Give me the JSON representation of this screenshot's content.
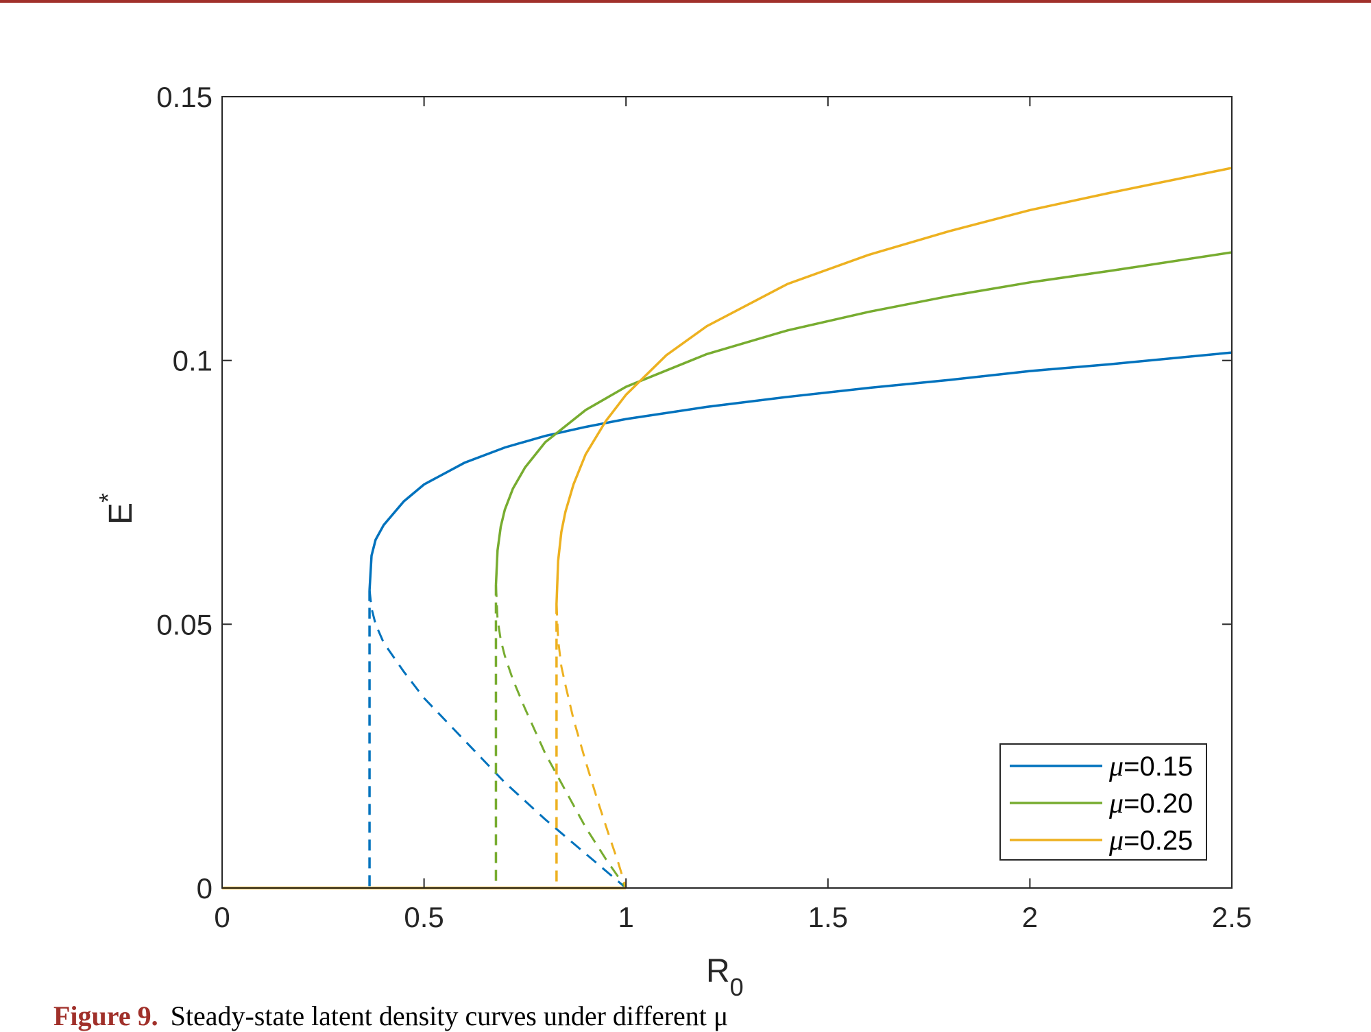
{
  "caption": {
    "label": "Figure 9.",
    "text": "Steady-state latent density curves under different μ"
  },
  "chart_data": {
    "type": "line",
    "xlabel": "R",
    "xlabel_sub": "0",
    "ylabel": "E",
    "ylabel_sup": "*",
    "xlim": [
      0,
      2.5
    ],
    "ylim": [
      0,
      0.15
    ],
    "xticks": [
      0,
      0.5,
      1,
      1.5,
      2,
      2.5
    ],
    "xtick_labels": [
      "0",
      "0.5",
      "1",
      "1.5",
      "2",
      "2.5"
    ],
    "yticks": [
      0,
      0.05,
      0.1,
      0.15
    ],
    "ytick_labels": [
      "0",
      "0.05",
      "0.1",
      "0.15"
    ],
    "grid": false,
    "legend_position": "bottom-right",
    "series": [
      {
        "name": "μ=0.15",
        "legend_symbol": "μ",
        "legend_value": "=0.15",
        "color": "#0072BD",
        "turning_point": [
          0.365,
          0.0565
        ],
        "stable_upper": [
          [
            0.365,
            0.0565
          ],
          [
            0.37,
            0.063
          ],
          [
            0.38,
            0.066
          ],
          [
            0.4,
            0.0688
          ],
          [
            0.45,
            0.0733
          ],
          [
            0.5,
            0.0765
          ],
          [
            0.6,
            0.0806
          ],
          [
            0.7,
            0.0835
          ],
          [
            0.8,
            0.0857
          ],
          [
            0.9,
            0.0874
          ],
          [
            1.0,
            0.0889
          ],
          [
            1.2,
            0.0912
          ],
          [
            1.4,
            0.0931
          ],
          [
            1.6,
            0.0948
          ],
          [
            1.8,
            0.0963
          ],
          [
            2.0,
            0.098
          ],
          [
            2.2,
            0.0993
          ],
          [
            2.5,
            0.1015
          ]
        ],
        "unstable_lower": [
          [
            0.365,
            0.0565
          ],
          [
            0.37,
            0.053
          ],
          [
            0.38,
            0.05
          ],
          [
            0.4,
            0.0465
          ],
          [
            0.45,
            0.041
          ],
          [
            0.5,
            0.036
          ],
          [
            0.6,
            0.028
          ],
          [
            0.7,
            0.02
          ],
          [
            0.8,
            0.013
          ],
          [
            0.9,
            0.0065
          ],
          [
            1.0,
            0.0
          ]
        ],
        "dashed_vertical_x": 0.365,
        "zero_branch_until": 0.365
      },
      {
        "name": "μ=0.20",
        "legend_symbol": "μ",
        "legend_value": "=0.20",
        "color": "#77AC30",
        "turning_point": [
          0.678,
          0.0575
        ],
        "stable_upper": [
          [
            0.678,
            0.0575
          ],
          [
            0.682,
            0.064
          ],
          [
            0.69,
            0.0685
          ],
          [
            0.7,
            0.0717
          ],
          [
            0.72,
            0.0757
          ],
          [
            0.75,
            0.0797
          ],
          [
            0.8,
            0.0845
          ],
          [
            0.9,
            0.0906
          ],
          [
            1.0,
            0.095
          ],
          [
            1.2,
            0.1012
          ],
          [
            1.4,
            0.1057
          ],
          [
            1.6,
            0.1092
          ],
          [
            1.8,
            0.1122
          ],
          [
            2.0,
            0.1148
          ],
          [
            2.2,
            0.117
          ],
          [
            2.5,
            0.1205
          ]
        ],
        "unstable_lower": [
          [
            0.678,
            0.0575
          ],
          [
            0.682,
            0.051
          ],
          [
            0.69,
            0.047
          ],
          [
            0.7,
            0.044
          ],
          [
            0.72,
            0.0395
          ],
          [
            0.75,
            0.034
          ],
          [
            0.8,
            0.0255
          ],
          [
            0.85,
            0.0185
          ],
          [
            0.9,
            0.0115
          ],
          [
            0.95,
            0.0055
          ],
          [
            1.0,
            0.0
          ]
        ],
        "dashed_vertical_x": 0.678,
        "zero_branch_until": 0.678
      },
      {
        "name": "μ=0.25",
        "legend_symbol": "μ",
        "legend_value": "=0.25",
        "color": "#EDB120",
        "turning_point": [
          0.828,
          0.054
        ],
        "stable_upper": [
          [
            0.828,
            0.054
          ],
          [
            0.832,
            0.062
          ],
          [
            0.84,
            0.0675
          ],
          [
            0.85,
            0.0713
          ],
          [
            0.87,
            0.0765
          ],
          [
            0.9,
            0.0822
          ],
          [
            0.95,
            0.0885
          ],
          [
            1.0,
            0.0935
          ],
          [
            1.1,
            0.101
          ],
          [
            1.2,
            0.1065
          ],
          [
            1.4,
            0.1145
          ],
          [
            1.6,
            0.12
          ],
          [
            1.8,
            0.1245
          ],
          [
            2.0,
            0.1285
          ],
          [
            2.2,
            0.1318
          ],
          [
            2.5,
            0.1365
          ]
        ],
        "unstable_lower": [
          [
            0.828,
            0.054
          ],
          [
            0.832,
            0.047
          ],
          [
            0.84,
            0.042
          ],
          [
            0.85,
            0.0385
          ],
          [
            0.87,
            0.032
          ],
          [
            0.9,
            0.024
          ],
          [
            0.93,
            0.0165
          ],
          [
            0.96,
            0.0095
          ],
          [
            0.98,
            0.005
          ],
          [
            1.0,
            0.0
          ]
        ],
        "dashed_vertical_x": 0.828,
        "zero_branch_until": 1.0
      }
    ]
  }
}
